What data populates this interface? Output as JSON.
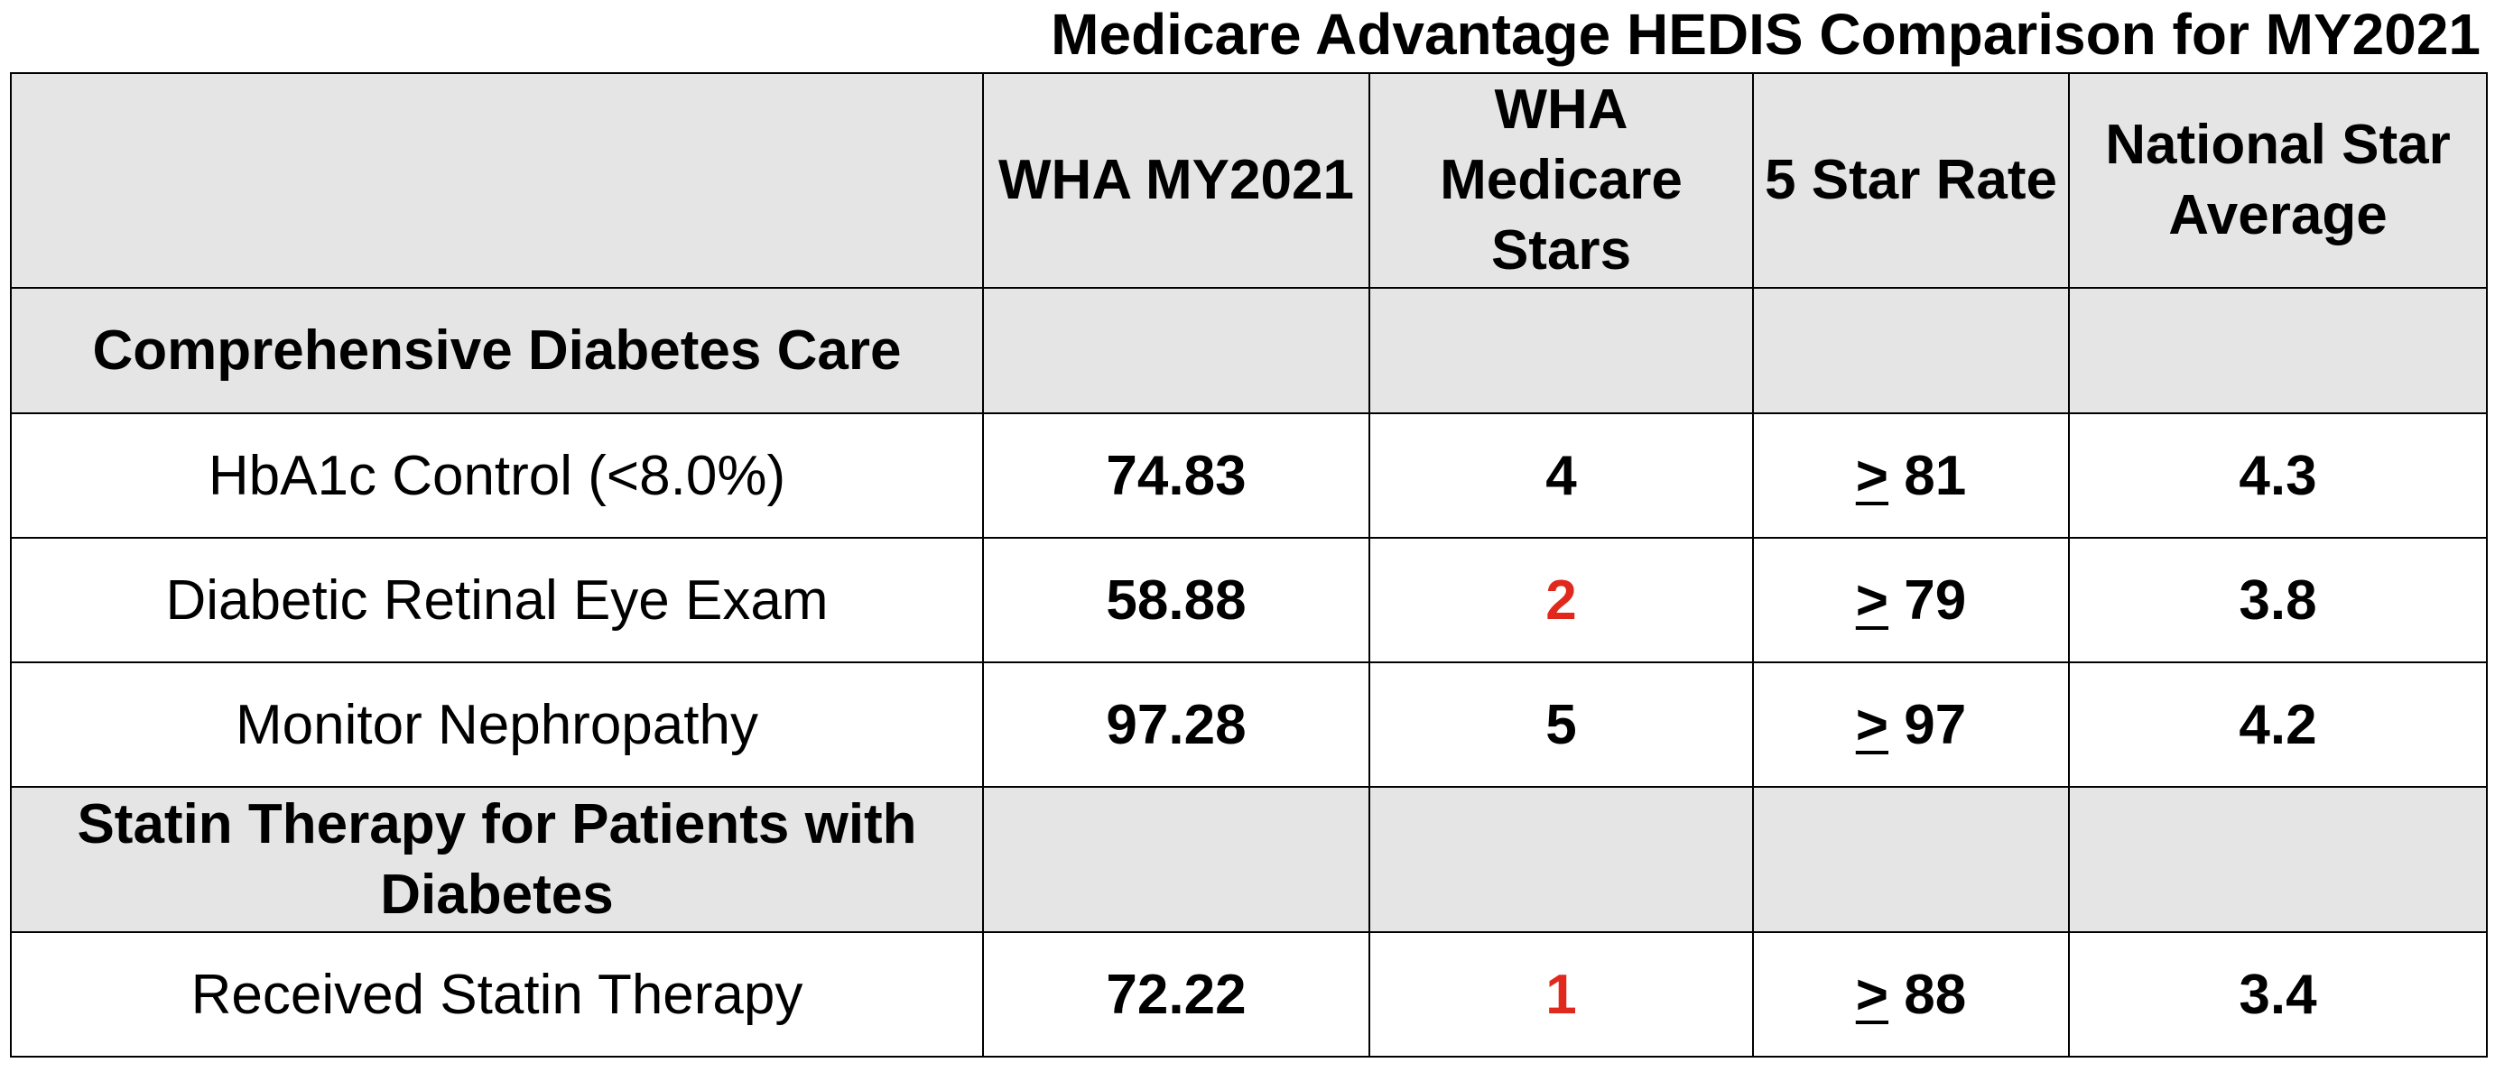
{
  "title": "Medicare Advantage HEDIS Comparison for MY2021",
  "columns": {
    "measure": "",
    "wha_my2021": "WHA MY2021",
    "wha_stars": "WHA Medicare Stars",
    "five_star_rate": "5 Star Rate",
    "national_avg": "National Star Average"
  },
  "sections": [
    {
      "label": "Comprehensive Diabetes Care",
      "rows": [
        {
          "measure": "HbA1c Control (<8.0%)",
          "wha_my2021": "74.83",
          "stars": "4",
          "ge_symbol": ">",
          "threshold": " 81",
          "national_avg": "4.3"
        },
        {
          "measure": "Diabetic Retinal Eye Exam",
          "wha_my2021": "58.88",
          "stars": "2",
          "ge_symbol": ">",
          "threshold": " 79",
          "national_avg": "3.8"
        },
        {
          "measure": "Monitor Nephropathy",
          "wha_my2021": "97.28",
          "stars": "5",
          "ge_symbol": ">",
          "threshold": " 97",
          "national_avg": "4.2"
        }
      ]
    },
    {
      "label": "Statin Therapy for Patients with Diabetes",
      "rows": [
        {
          "measure": "Received Statin Therapy",
          "wha_my2021": "72.22",
          "stars": "1",
          "ge_symbol": ">",
          "threshold": " 88",
          "national_avg": "3.4"
        }
      ]
    }
  ],
  "colors": {
    "header_bg": "#e5e5e5",
    "low_star": "#e0291c",
    "text": "#000000"
  }
}
